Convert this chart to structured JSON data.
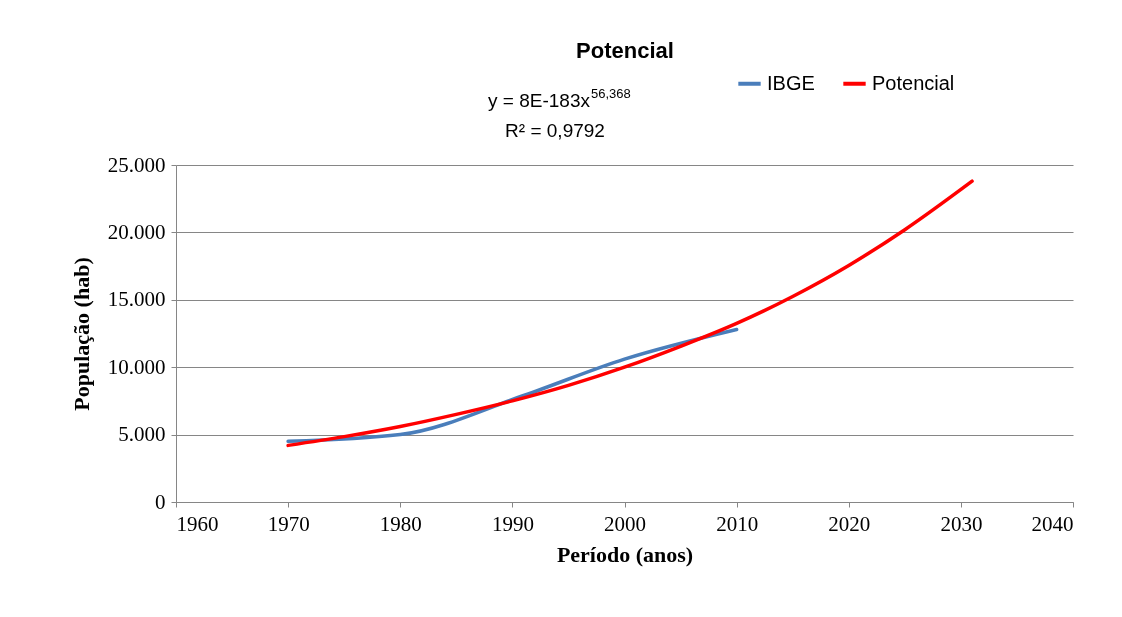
{
  "chart_data": {
    "type": "line",
    "title": "Potencial",
    "xlabel": "Período (anos)",
    "ylabel": "População (hab)",
    "annotations": [
      "y = 8E-183x$^{56,368}$",
      "R² = 0,9792"
    ],
    "series": [
      {
        "name": "IBGE",
        "color": "#4a7ebb",
        "x": [
          1970,
          1980,
          1991,
          2000,
          2010
        ],
        "values": [
          4500,
          5000,
          7900,
          10600,
          12800
        ]
      },
      {
        "name": "Potencial",
        "color": "#ff0000",
        "x": [
          1970,
          1975,
          1980,
          1985,
          1990,
          1995,
          2000,
          2005,
          2010,
          2015,
          2020,
          2025,
          2031
        ],
        "values": [
          4200,
          4850,
          5600,
          6500,
          7500,
          8650,
          10000,
          11550,
          13250,
          15250,
          17550,
          20200,
          23800
        ]
      }
    ],
    "xlim": [
      1960,
      2040
    ],
    "xticks": [
      1960,
      1970,
      1980,
      1990,
      2000,
      2010,
      2020,
      2030,
      2040
    ],
    "ylim": [
      0,
      25000
    ],
    "yticks": [
      0,
      {
        "value": 5000,
        "label": "5.000"
      },
      {
        "value": 10000,
        "label": "10.000"
      },
      {
        "value": 15000,
        "label": "15.000"
      },
      {
        "value": 20000,
        "label": "20.000"
      },
      {
        "value": 25000,
        "label": "25.000"
      }
    ],
    "grid": "y",
    "legend": "top right",
    "marker": "none",
    "line_style": "solid"
  }
}
